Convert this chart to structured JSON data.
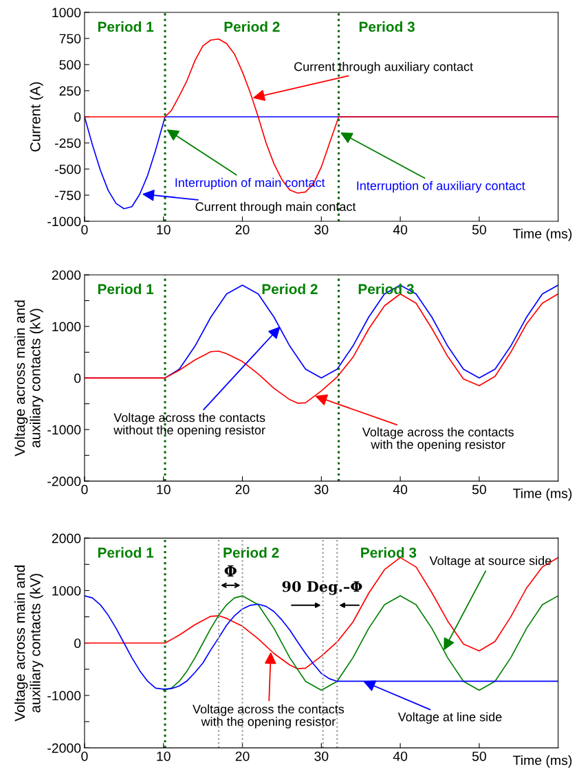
{
  "chart_data": [
    {
      "type": "line",
      "xlabel": "Time (ms)",
      "ylabel": "Current (A)",
      "xlim": [
        0,
        60
      ],
      "xticks": [
        0,
        10,
        20,
        30,
        40,
        50
      ],
      "ylim": [
        -1000,
        1000
      ],
      "yticks": [
        -1000,
        -750,
        -500,
        -250,
        0,
        250,
        500,
        750,
        1000
      ],
      "grid": false,
      "legend": false,
      "series": [
        {
          "color": "#0000ff",
          "x": [
            0,
            1,
            2,
            3,
            4,
            5,
            6,
            7,
            8,
            9,
            10.2,
            60
          ],
          "values": [
            0,
            -268,
            -510,
            -705,
            -830,
            -880,
            -860,
            -740,
            -560,
            -320,
            0,
            0
          ]
        },
        {
          "color": "#ff0000",
          "x": [
            0,
            10.2,
            11,
            12,
            13,
            14,
            15,
            16,
            17,
            18,
            19,
            20,
            21,
            22,
            23,
            24,
            25,
            26,
            27,
            28,
            29,
            30,
            31,
            32.2,
            60
          ],
          "values": [
            0,
            0,
            60,
            200,
            350,
            540,
            680,
            735,
            745,
            700,
            600,
            430,
            230,
            0,
            -250,
            -450,
            -600,
            -700,
            -730,
            -720,
            -640,
            -480,
            -260,
            0,
            0
          ]
        }
      ],
      "ref_lines": [
        {
          "axis": "x",
          "value": 10.2,
          "color": "#006400",
          "line_style": "dotted"
        },
        {
          "axis": "x",
          "value": 32.2,
          "color": "#006400",
          "line_style": "dotted"
        }
      ],
      "annotations": [
        "Period 1",
        "Period 2",
        "Period 3",
        {
          "text": "Current through auxiliary contact",
          "x": 21.3,
          "y": 180
        },
        {
          "text": "Interruption of main contact",
          "x": 10.4,
          "y": -120
        },
        {
          "text": "Interruption of auxiliary contact",
          "x": 32.4,
          "y": -150
        },
        {
          "text": "Current through main contact",
          "x": 7.3,
          "y": -740
        }
      ]
    },
    {
      "type": "line",
      "xlabel": "Time (ms)",
      "ylabel": "Voltage across main and\nauxiliary contacts (kV)",
      "xlim": [
        0,
        60
      ],
      "xticks": [
        0,
        10,
        20,
        30,
        40,
        50
      ],
      "ylim": [
        -2000,
        2000
      ],
      "yticks": [
        -2000,
        {
          "value": -1500,
          "label": null
        },
        -1000,
        {
          "value": -500,
          "label": null
        },
        0,
        {
          "value": 500,
          "label": null
        },
        1000,
        {
          "value": 1500,
          "label": null
        },
        2000
      ],
      "grid": false,
      "legend": false,
      "series": [
        {
          "color": "#0000ff",
          "x": [
            0,
            10.2,
            12,
            14,
            16,
            18,
            20,
            22,
            24,
            26,
            28,
            30,
            32,
            34,
            36,
            38,
            40,
            42,
            44,
            46,
            48,
            50,
            52,
            54,
            56,
            58,
            60
          ],
          "values": [
            0,
            0,
            170,
            620,
            1180,
            1630,
            1800,
            1630,
            1180,
            620,
            170,
            0,
            170,
            620,
            1180,
            1630,
            1800,
            1630,
            1180,
            620,
            170,
            0,
            170,
            620,
            1180,
            1630,
            1800
          ]
        },
        {
          "color": "#ff0000",
          "x": [
            0,
            10.2,
            12,
            14,
            16,
            17,
            18,
            20,
            22,
            24,
            26,
            27,
            28,
            30,
            32,
            34,
            36,
            38,
            40,
            42,
            44,
            46,
            48,
            50,
            52,
            54,
            56,
            58,
            60
          ],
          "values": [
            0,
            0,
            150,
            350,
            510,
            520,
            470,
            320,
            80,
            -200,
            -420,
            -490,
            -480,
            -250,
            20,
            400,
            950,
            1400,
            1630,
            1450,
            960,
            420,
            -20,
            -150,
            30,
            500,
            1050,
            1450,
            1630
          ]
        }
      ],
      "ref_lines": [
        {
          "axis": "x",
          "value": 10.2,
          "color": "#006400",
          "line_style": "dotted"
        },
        {
          "axis": "x",
          "value": 32.2,
          "color": "#006400",
          "line_style": "dotted"
        }
      ],
      "annotations": [
        "Period 1",
        "Period 2",
        "Period 3",
        {
          "text": "Voltage across the contacts\nwithout the opening resistor",
          "x": 24.8,
          "y": 1000
        },
        {
          "text": "Voltage across the contacts\nwith the opening resistor",
          "x": 29.2,
          "y": -350
        }
      ]
    },
    {
      "type": "line",
      "xlabel": "Time (ms)",
      "ylabel": "Voltage across main and\nauxiliary contacts (kV)",
      "xlim": [
        0,
        60
      ],
      "xticks": [
        0,
        10,
        20,
        30,
        40,
        50
      ],
      "ylim": [
        -2000,
        2000
      ],
      "yticks": [
        -2000,
        {
          "value": -1500,
          "label": null
        },
        -1000,
        {
          "value": -500,
          "label": null
        },
        0,
        {
          "value": 500,
          "label": null
        },
        1000,
        {
          "value": 1500,
          "label": null
        },
        2000
      ],
      "grid": false,
      "legend": false,
      "series": [
        {
          "color": "#ff0000",
          "x": [
            0,
            10.2,
            12,
            14,
            16,
            17,
            18,
            20,
            22,
            24,
            26,
            27,
            28,
            30,
            32,
            34,
            36,
            38,
            40,
            42,
            44,
            46,
            48,
            50,
            52,
            54,
            56,
            58,
            60
          ],
          "values": [
            0,
            0,
            150,
            350,
            510,
            520,
            470,
            320,
            80,
            -200,
            -420,
            -490,
            -480,
            -250,
            20,
            400,
            950,
            1400,
            1630,
            1450,
            960,
            420,
            -20,
            -150,
            30,
            500,
            1050,
            1450,
            1630
          ]
        },
        {
          "color": "#008000",
          "x": [
            10,
            11,
            12,
            13,
            14,
            15,
            16,
            17,
            18,
            19,
            20,
            22,
            24,
            26,
            28,
            30,
            32,
            34,
            36,
            38,
            40,
            42,
            44,
            46,
            48,
            50,
            52,
            54,
            56,
            58,
            60
          ],
          "values": [
            -900,
            -860,
            -730,
            -530,
            -280,
            0,
            280,
            530,
            730,
            860,
            900,
            730,
            280,
            -280,
            -730,
            -900,
            -730,
            -280,
            280,
            730,
            900,
            730,
            280,
            -280,
            -730,
            -900,
            -730,
            -280,
            280,
            730,
            900
          ]
        },
        {
          "color": "#0000ff",
          "x": [
            0,
            1,
            2,
            3,
            4,
            5,
            6,
            7,
            8,
            9,
            10,
            11,
            12,
            13,
            14,
            15,
            16,
            17,
            18,
            19,
            20,
            21,
            22,
            23,
            24,
            25,
            26,
            27,
            28,
            29,
            30,
            31,
            32,
            60
          ],
          "values": [
            900,
            860,
            730,
            530,
            280,
            0,
            -280,
            -530,
            -730,
            -860,
            -880,
            -870,
            -820,
            -720,
            -560,
            -380,
            -130,
            100,
            340,
            520,
            650,
            720,
            740,
            700,
            600,
            440,
            250,
            20,
            -200,
            -400,
            -580,
            -680,
            -730,
            -730
          ]
        }
      ],
      "ref_lines": [
        {
          "axis": "x",
          "value": 10.2,
          "color": "#006400",
          "line_style": "dotted"
        },
        {
          "axis": "x",
          "value": 17,
          "color": "#999999",
          "line_style": "dotted"
        },
        {
          "axis": "x",
          "value": 20,
          "color": "#999999",
          "line_style": "dotted"
        },
        {
          "axis": "x",
          "value": 30.2,
          "color": "#999999",
          "line_style": "dotted"
        },
        {
          "axis": "x",
          "value": 32,
          "color": "#999999",
          "line_style": "dotted"
        }
      ],
      "annotations": [
        "Period 1",
        "Period 2",
        "Period 3",
        "Φ",
        "90 Deg.–Φ",
        {
          "text": "Voltage at source side",
          "x": 45.5,
          "y": -140
        },
        {
          "text": "Voltage at line side",
          "x": 35.3,
          "y": -730
        },
        {
          "text": "Voltage across the contacts\nwith the opening resistor",
          "x": 23.6,
          "y": -170
        }
      ]
    }
  ]
}
